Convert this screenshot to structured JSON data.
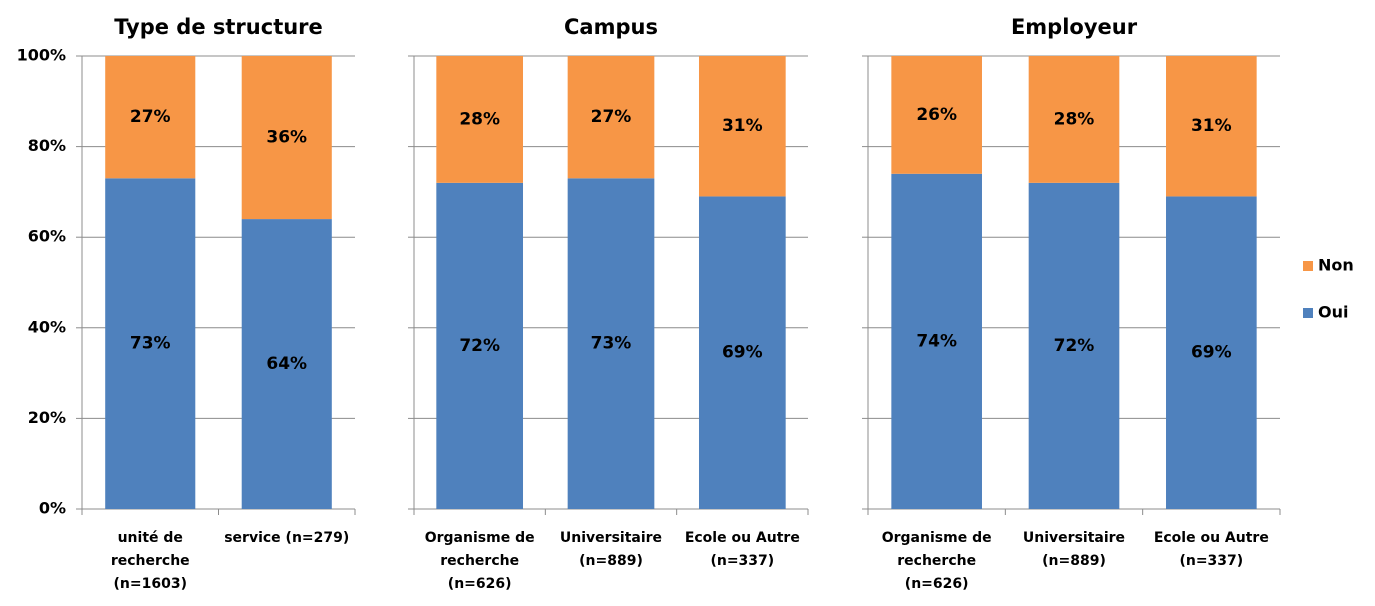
{
  "chart_data": [
    {
      "type": "bar",
      "stacked": true,
      "title": "Type de structure",
      "categories": [
        "unité de recherche (n=1603)",
        "service (n=279)"
      ],
      "series": [
        {
          "name": "Oui",
          "color": "#4f81bd",
          "values": [
            73,
            64
          ],
          "value_labels": [
            "73%",
            "64%"
          ]
        },
        {
          "name": "Non",
          "color": "#f79646",
          "values": [
            27,
            36
          ],
          "value_labels": [
            "27%",
            "36%"
          ]
        }
      ],
      "ylim": [
        0,
        100
      ],
      "yticks": [
        {
          "value": 0,
          "label": "0%"
        },
        {
          "value": 20,
          "label": "20%"
        },
        {
          "value": 40,
          "label": "40%"
        },
        {
          "value": 60,
          "label": "60%"
        },
        {
          "value": 80,
          "label": "80%"
        },
        {
          "value": 100,
          "label": "100%"
        }
      ],
      "grid": true,
      "legend": "right"
    },
    {
      "type": "bar",
      "stacked": true,
      "title": "Campus",
      "categories": [
        "Organisme de recherche (n=626)",
        "Universitaire (n=889)",
        "Ecole ou Autre (n=337)"
      ],
      "series": [
        {
          "color": "#4f81bd",
          "values": [
            72,
            73,
            69
          ],
          "value_labels": [
            "72%",
            "73%",
            "69%"
          ]
        },
        {
          "color": "#f79646",
          "values": [
            28,
            27,
            31
          ],
          "value_labels": [
            "28%",
            "27%",
            "31%"
          ]
        }
      ],
      "ylim": [
        0,
        100
      ],
      "yticks": [
        0,
        20,
        40,
        60,
        80,
        100
      ],
      "grid": true
    },
    {
      "type": "bar",
      "stacked": true,
      "title": "Employeur",
      "categories": [
        "Organisme de recherche (n=626)",
        "Universitaire (n=889)",
        "Ecole ou Autre (n=337)"
      ],
      "series": [
        {
          "color": "#4f81bd",
          "values": [
            74,
            72,
            69
          ],
          "value_labels": [
            "74%",
            "72%",
            "69%"
          ]
        },
        {
          "color": "#f79646",
          "values": [
            26,
            28,
            31
          ],
          "value_labels": [
            "26%",
            "28%",
            "31%"
          ]
        }
      ],
      "ylim": [
        0,
        100
      ],
      "yticks": [
        0,
        20,
        40,
        60,
        80,
        100
      ],
      "grid": true
    }
  ]
}
